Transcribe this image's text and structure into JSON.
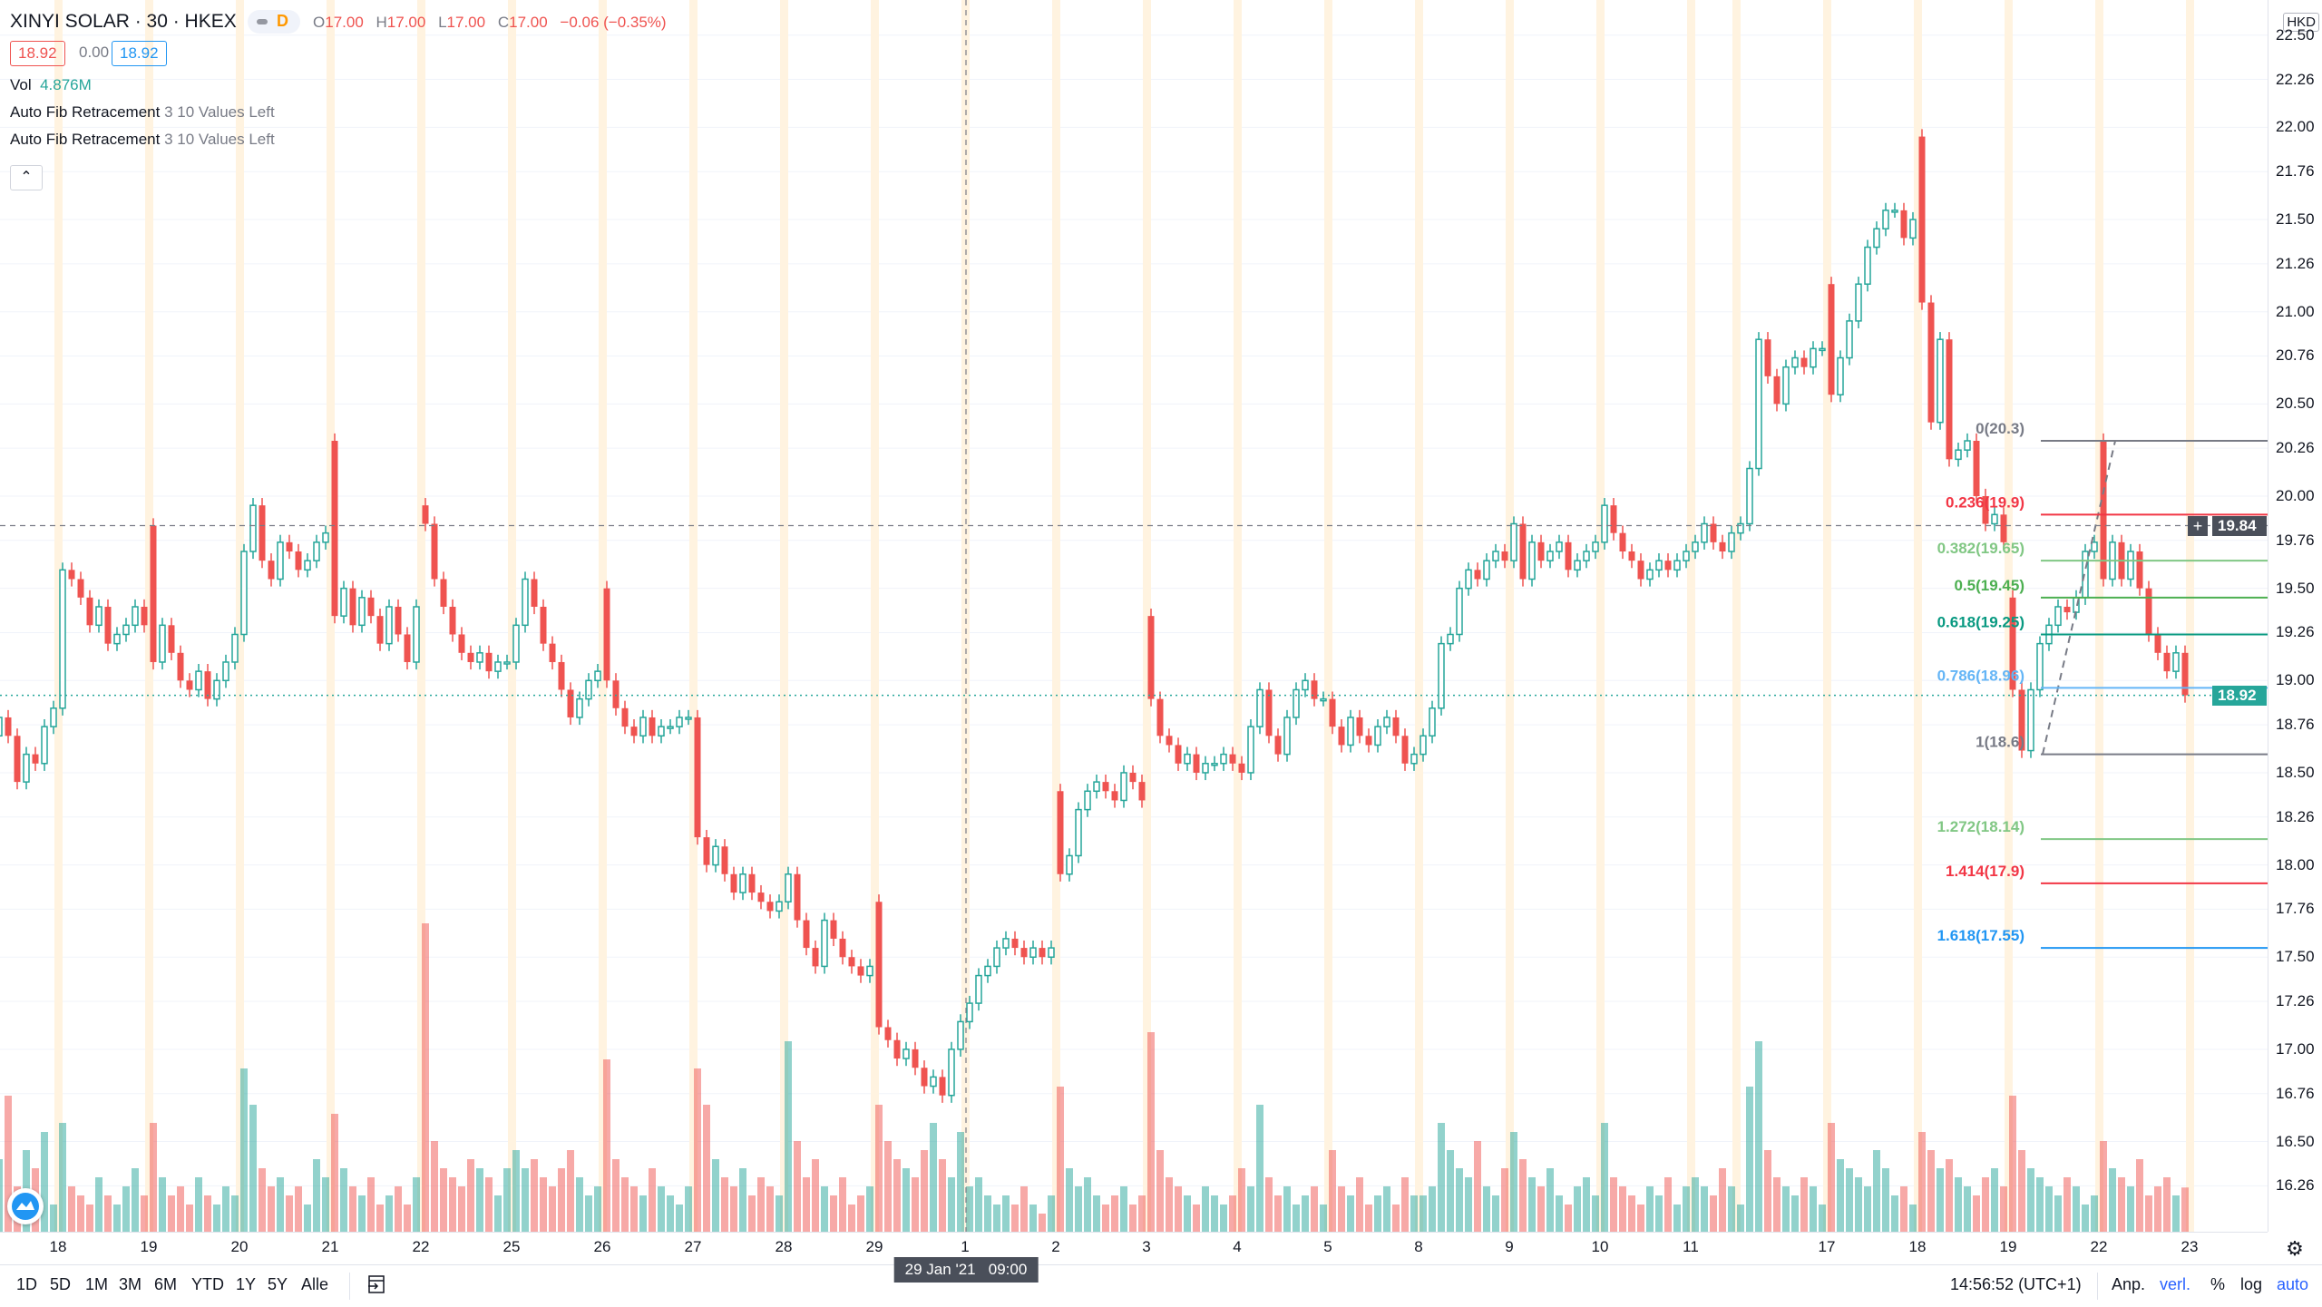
{
  "symbol": {
    "title": "XINYI SOLAR · 30 · HKEX",
    "interval_badge": "D",
    "ohlc": {
      "o_label": "O",
      "o": "17.00",
      "h_label": "H",
      "h": "17.00",
      "l_label": "L",
      "l": "17.00",
      "c_label": "C",
      "c": "17.00",
      "change": "−0.06 (−0.35%)"
    },
    "bid": "18.92",
    "spread": "0.00",
    "ask": "18.92"
  },
  "indicators": {
    "vol_label": "Vol",
    "vol_value": "4.876M",
    "items": [
      {
        "name": "Auto Fib Retracement",
        "params": "3 10 Values Left"
      },
      {
        "name": "Auto Fib Retracement",
        "params": "3 10 Values Left"
      }
    ],
    "collapse_icon": "chevron-up-icon"
  },
  "colors": {
    "up": "#26a69a",
    "down": "#ef5350",
    "up_vol": "rgba(38,166,154,0.5)",
    "down_vol": "rgba(239,83,80,0.5)",
    "session_band": "#fff3e0",
    "crosshair": "#787b86",
    "last_price": "#26a69a",
    "crosshair_tag": "#4a4f5a",
    "accent": "#2962ff"
  },
  "price_axis": {
    "currency": "HKD",
    "labels": [
      "22.50",
      "22.26",
      "22.00",
      "21.76",
      "21.50",
      "21.26",
      "21.00",
      "20.76",
      "20.50",
      "20.26",
      "20.00",
      "19.76",
      "19.50",
      "19.26",
      "19.00",
      "18.76",
      "18.50",
      "18.26",
      "18.00",
      "17.76",
      "17.50",
      "17.26",
      "17.00",
      "16.76",
      "16.50",
      "16.26"
    ],
    "crosshair_price": "19.84",
    "last_price": "18.92"
  },
  "time_axis": {
    "ticks": [
      {
        "label": "18",
        "bar": 7
      },
      {
        "label": "19",
        "bar": 17
      },
      {
        "label": "20",
        "bar": 27
      },
      {
        "label": "21",
        "bar": 37
      },
      {
        "label": "22",
        "bar": 47
      },
      {
        "label": "25",
        "bar": 57
      },
      {
        "label": "26",
        "bar": 67
      },
      {
        "label": "27",
        "bar": 77
      },
      {
        "label": "28",
        "bar": 87
      },
      {
        "label": "29",
        "bar": 97
      },
      {
        "label": "1",
        "bar": 107
      },
      {
        "label": "2",
        "bar": 117
      },
      {
        "label": "3",
        "bar": 127
      },
      {
        "label": "4",
        "bar": 137
      },
      {
        "label": "5",
        "bar": 147
      },
      {
        "label": "8",
        "bar": 157
      },
      {
        "label": "9",
        "bar": 167
      },
      {
        "label": "10",
        "bar": 177
      },
      {
        "label": "11",
        "bar": 187
      },
      {
        "label": "",
        "bar": 192
      },
      {
        "label": "17",
        "bar": 202
      },
      {
        "label": "18",
        "bar": 212
      },
      {
        "label": "19",
        "bar": 222
      },
      {
        "label": "22",
        "bar": 232
      },
      {
        "label": "23",
        "bar": 242
      }
    ],
    "crosshair_time": "29 Jan '21   09:00"
  },
  "chart_data": {
    "type": "candlestick",
    "sessions": [
      {
        "open": 18.7,
        "closes": [
          18.8,
          18.7,
          18.45,
          18.6,
          18.55,
          18.75,
          18.85
        ]
      },
      {
        "open": 18.85,
        "closes": [
          19.6,
          19.55,
          19.45,
          19.3,
          19.4,
          19.2,
          19.25,
          19.3,
          19.4,
          19.3
        ]
      },
      {
        "open": 19.84,
        "closes": [
          19.1,
          19.3,
          19.15,
          19.0,
          18.95,
          19.05,
          18.9,
          19.0,
          19.1,
          19.25
        ]
      },
      {
        "open": 19.25,
        "closes": [
          19.7,
          19.95,
          19.65,
          19.55,
          19.75,
          19.7,
          19.6,
          19.65,
          19.75,
          19.8
        ]
      },
      {
        "open": 20.3,
        "closes": [
          19.35,
          19.5,
          19.3,
          19.45,
          19.35,
          19.2,
          19.4,
          19.25,
          19.1,
          19.4
        ]
      },
      {
        "open": 19.95,
        "closes": [
          19.85,
          19.55,
          19.4,
          19.25,
          19.15,
          19.1,
          19.15,
          19.05,
          19.1,
          19.1
        ]
      },
      {
        "open": 19.1,
        "closes": [
          19.3,
          19.55,
          19.4,
          19.2,
          19.1,
          18.95,
          18.8,
          18.9,
          19.0,
          19.05
        ]
      },
      {
        "open": 19.5,
        "closes": [
          19.0,
          18.85,
          18.75,
          18.7,
          18.8,
          18.7,
          18.75,
          18.75,
          18.8,
          18.8
        ]
      },
      {
        "open": 18.8,
        "closes": [
          18.15,
          18.0,
          18.1,
          17.95,
          17.85,
          17.95,
          17.85,
          17.8,
          17.75,
          17.8
        ]
      },
      {
        "open": 17.8,
        "closes": [
          17.95,
          17.7,
          17.55,
          17.45,
          17.7,
          17.6,
          17.5,
          17.45,
          17.4,
          17.45
        ]
      },
      {
        "open": 17.8,
        "closes": [
          17.12,
          17.05,
          16.95,
          17.0,
          16.9,
          16.8,
          16.85,
          16.75,
          17.0,
          17.15
        ]
      },
      {
        "open": 17.15,
        "closes": [
          17.25,
          17.4,
          17.45,
          17.55,
          17.6,
          17.55,
          17.5,
          17.55,
          17.5,
          17.55
        ]
      },
      {
        "open": 18.4,
        "closes": [
          17.95,
          18.05,
          18.3,
          18.4,
          18.45,
          18.4,
          18.35,
          18.5,
          18.45,
          18.35
        ]
      },
      {
        "open": 19.35,
        "closes": [
          18.9,
          18.7,
          18.65,
          18.55,
          18.6,
          18.5,
          18.55,
          18.55,
          18.6,
          18.55
        ]
      },
      {
        "open": 18.55,
        "closes": [
          18.5,
          18.75,
          18.95,
          18.7,
          18.6,
          18.8,
          18.95,
          19.0,
          18.9,
          18.9
        ]
      },
      {
        "open": 18.9,
        "closes": [
          18.75,
          18.65,
          18.8,
          18.7,
          18.65,
          18.75,
          18.8,
          18.7,
          18.55,
          18.6
        ]
      },
      {
        "open": 18.6,
        "closes": [
          18.7,
          18.85,
          19.2,
          19.25,
          19.5,
          19.6,
          19.55,
          19.65,
          19.7,
          19.65
        ]
      },
      {
        "open": 19.65,
        "closes": [
          19.85,
          19.55,
          19.75,
          19.65,
          19.7,
          19.75,
          19.6,
          19.65,
          19.7,
          19.75
        ]
      },
      {
        "open": 19.75,
        "closes": [
          19.95,
          19.8,
          19.7,
          19.65,
          19.55,
          19.6,
          19.65,
          19.6,
          19.65,
          19.7
        ]
      },
      {
        "open": 19.7,
        "closes": [
          19.75,
          19.85,
          19.75,
          19.7,
          19.8,
          19.85,
          20.15,
          20.85,
          20.65,
          20.5,
          20.7,
          20.75,
          20.7,
          20.8,
          20.8
        ]
      },
      {
        "open": 21.15,
        "closes": [
          20.55,
          20.75,
          20.95,
          21.15,
          21.35,
          21.45,
          21.55,
          21.55,
          21.4,
          21.5
        ]
      },
      {
        "open": 21.95,
        "closes": [
          21.05,
          20.4,
          20.85,
          20.2,
          20.25,
          20.3,
          20.0,
          19.85,
          19.9,
          19.75
        ]
      },
      {
        "open": 19.45,
        "closes": [
          18.95,
          18.62,
          18.95,
          19.2,
          19.3,
          19.4,
          19.37,
          19.45,
          19.7,
          19.75
        ]
      },
      {
        "open": 20.3,
        "closes": [
          19.55,
          19.75,
          19.55,
          19.7,
          19.5,
          19.25,
          19.15,
          19.05,
          19.15,
          18.92
        ]
      }
    ],
    "volume_millions": [
      8,
      15,
      5,
      9,
      7,
      11,
      3,
      12,
      5,
      4,
      3,
      6,
      4,
      3,
      5,
      7,
      4,
      12,
      6,
      4,
      5,
      3,
      6,
      4,
      3,
      5,
      4,
      18,
      14,
      7,
      5,
      6,
      4,
      5,
      3,
      8,
      6,
      13,
      7,
      5,
      4,
      6,
      3,
      4,
      5,
      3,
      6,
      34,
      10,
      7,
      6,
      5,
      8,
      7,
      6,
      4,
      7,
      9,
      7,
      8,
      6,
      5,
      7,
      9,
      6,
      4,
      5,
      19,
      8,
      6,
      5,
      4,
      7,
      5,
      4,
      3,
      5,
      18,
      14,
      8,
      6,
      5,
      7,
      4,
      6,
      5,
      4,
      21,
      10,
      6,
      8,
      5,
      4,
      6,
      3,
      4,
      5,
      14,
      10,
      8,
      7,
      6,
      9,
      12,
      8,
      6,
      11,
      5,
      6,
      4,
      3,
      4,
      3,
      5,
      3,
      2,
      4,
      16,
      7,
      5,
      6,
      4,
      3,
      4,
      5,
      3,
      4,
      22,
      9,
      6,
      5,
      4,
      3,
      5,
      4,
      3,
      4,
      7,
      5,
      14,
      6,
      4,
      5,
      3,
      4,
      5,
      3,
      9,
      5,
      4,
      6,
      3,
      4,
      5,
      3,
      6,
      4,
      4,
      5,
      12,
      9,
      7,
      6,
      10,
      5,
      4,
      7,
      11,
      8,
      6,
      5,
      7,
      4,
      3,
      5,
      6,
      4,
      12,
      6,
      5,
      4,
      3,
      5,
      4,
      6,
      3,
      5,
      6,
      5,
      4,
      7,
      5,
      3,
      16,
      21,
      9,
      6,
      5,
      4,
      6,
      5,
      3,
      12,
      8,
      7,
      6,
      5,
      9,
      7,
      4,
      5,
      3,
      11,
      9,
      7,
      8,
      6,
      5,
      4,
      6,
      7,
      5,
      15,
      9,
      7,
      6,
      5,
      4,
      6,
      5,
      3,
      4,
      10,
      7,
      6,
      5,
      8,
      4,
      5,
      6,
      4,
      4.876
    ],
    "ylim": [
      16.1,
      22.6
    ],
    "fib": {
      "anchor_low": 18.6,
      "anchor_high": 20.3,
      "levels": [
        {
          "label": "0(20.3)",
          "price": 20.3,
          "color": "#787b86"
        },
        {
          "label": "0.236(19.9)",
          "price": 19.9,
          "color": "#f23645"
        },
        {
          "label": "0.382(19.65)",
          "price": 19.65,
          "color": "#81c784"
        },
        {
          "label": "0.5(19.45)",
          "price": 19.45,
          "color": "#4caf50"
        },
        {
          "label": "0.618(19.25)",
          "price": 19.25,
          "color": "#089981"
        },
        {
          "label": "0.786(18.96)",
          "price": 18.96,
          "color": "#64b5f6"
        },
        {
          "label": "1(18.6)",
          "price": 18.6,
          "color": "#787b86"
        },
        {
          "label": "1.272(18.14)",
          "price": 18.14,
          "color": "#81c784"
        },
        {
          "label": "1.414(17.9)",
          "price": 17.9,
          "color": "#f23645"
        },
        {
          "label": "1.618(17.55)",
          "price": 17.55,
          "color": "#2196f3"
        }
      ]
    }
  },
  "toolbar": {
    "ranges": [
      "1D",
      "5D",
      "1M",
      "3M",
      "6M",
      "YTD",
      "1Y",
      "5Y",
      "Alle"
    ],
    "goto_icon": "calendar-goto-icon",
    "clock": "14:56:52 (UTC+1)",
    "adjust": "Anp.",
    "extended": "verl.",
    "percent": "%",
    "log": "log",
    "auto": "auto"
  }
}
